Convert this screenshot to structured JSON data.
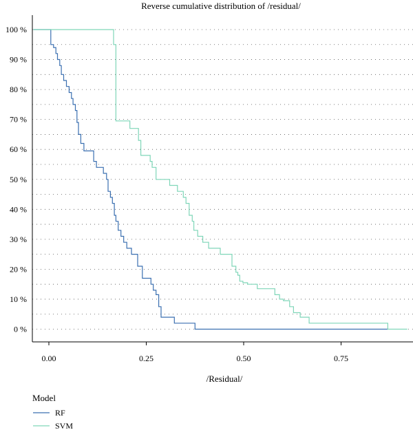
{
  "chart_data": {
    "type": "line",
    "step": true,
    "title": "Reverse cumulative distribution of /residual/",
    "xlabel": "/Residual/",
    "ylabel": "",
    "xlim": [
      -0.04,
      0.92
    ],
    "ylim": [
      0,
      100
    ],
    "x_ticks": [
      0.0,
      0.25,
      0.5,
      0.75
    ],
    "x_tick_labels": [
      "0.00",
      "0.25",
      "0.50",
      "0.75"
    ],
    "y_ticks": [
      0,
      10,
      20,
      30,
      40,
      50,
      60,
      70,
      80,
      90,
      100
    ],
    "y_tick_labels": [
      "0 %",
      "10 %",
      "20 %",
      "30 %",
      "40 %",
      "50 %",
      "60 %",
      "70 %",
      "80 %",
      "90 %",
      "100 %"
    ],
    "grid": "dotted horizontal at every 5 %",
    "legend": {
      "title": "Model",
      "position": "bottom-left"
    },
    "series": [
      {
        "name": "RF",
        "color": "#3a6fb0",
        "x": [
          -0.04,
          0.003,
          0.005,
          0.012,
          0.018,
          0.022,
          0.028,
          0.032,
          0.038,
          0.045,
          0.052,
          0.058,
          0.062,
          0.068,
          0.072,
          0.076,
          0.082,
          0.09,
          0.115,
          0.122,
          0.14,
          0.148,
          0.152,
          0.158,
          0.163,
          0.168,
          0.172,
          0.178,
          0.185,
          0.192,
          0.2,
          0.212,
          0.228,
          0.24,
          0.262,
          0.268,
          0.275,
          0.282,
          0.288,
          0.322,
          0.375,
          0.87
        ],
        "y": [
          100,
          100,
          95,
          94,
          92,
          90,
          88,
          85,
          83,
          81,
          79,
          77,
          75,
          73,
          69,
          65,
          62,
          59.5,
          56,
          54,
          52,
          50,
          46,
          44,
          42,
          38,
          36,
          33,
          31,
          29,
          27,
          25,
          21,
          17,
          15,
          13,
          11.5,
          7.5,
          4,
          2,
          0,
          0
        ]
      },
      {
        "name": "SVM",
        "color": "#7fd6b8",
        "x": [
          -0.04,
          0.162,
          0.166,
          0.172,
          0.208,
          0.23,
          0.236,
          0.26,
          0.265,
          0.275,
          0.31,
          0.33,
          0.345,
          0.352,
          0.36,
          0.368,
          0.372,
          0.382,
          0.395,
          0.41,
          0.44,
          0.47,
          0.48,
          0.485,
          0.49,
          0.498,
          0.51,
          0.535,
          0.58,
          0.592,
          0.602,
          0.618,
          0.628,
          0.645,
          0.668,
          0.87,
          0.92
        ],
        "y": [
          100,
          100,
          95,
          69.5,
          67,
          63,
          58,
          56,
          54,
          50,
          48,
          46,
          44,
          42,
          38,
          36,
          33,
          31,
          29,
          27,
          25,
          21,
          19,
          18,
          16,
          15.5,
          15,
          13.5,
          11.5,
          10,
          9.5,
          7.5,
          5.5,
          4,
          2,
          0,
          0
        ]
      }
    ]
  }
}
